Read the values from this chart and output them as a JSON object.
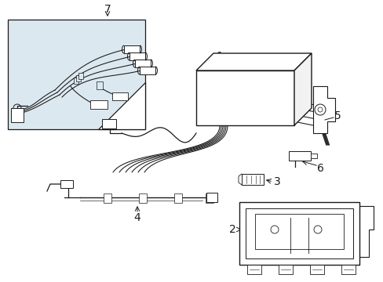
{
  "bg_color": "#ffffff",
  "line_color": "#1a1a1a",
  "inset_bg": "#dce8f0",
  "figsize": [
    4.89,
    3.6
  ],
  "dpi": 100,
  "lw": 0.9
}
